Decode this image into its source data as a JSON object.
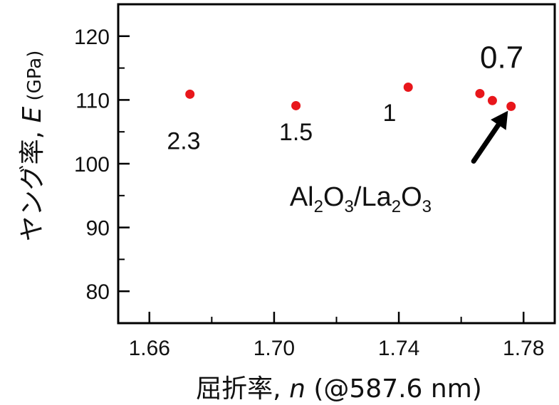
{
  "chart_data": {
    "type": "scatter",
    "xlabel": {
      "prefix": "屈折率, ",
      "var": "n",
      "suffix": " (@587.6 nm)"
    },
    "ylabel": {
      "prefix": "ヤング率, ",
      "var": "E",
      "unit": " (GPa)"
    },
    "xlim": [
      1.65,
      1.79
    ],
    "ylim": [
      75,
      125
    ],
    "xticks": [
      1.66,
      1.7,
      1.74,
      1.78
    ],
    "xtick_labels": [
      "1.66",
      "1.70",
      "1.74",
      "1.78"
    ],
    "yticks": [
      80,
      90,
      100,
      110,
      120
    ],
    "ytick_labels": [
      "80",
      "90",
      "100",
      "110",
      "120"
    ],
    "grid": false,
    "marker_color": "#e8161b",
    "points": [
      {
        "x": 1.673,
        "y": 110.9
      },
      {
        "x": 1.707,
        "y": 109.1
      },
      {
        "x": 1.743,
        "y": 112.0
      },
      {
        "x": 1.766,
        "y": 111.0
      },
      {
        "x": 1.77,
        "y": 109.9
      },
      {
        "x": 1.776,
        "y": 109.0
      }
    ],
    "annotations": [
      {
        "text": "2.3",
        "x": 1.671,
        "y": 102.3,
        "size": 34
      },
      {
        "text": "1.5",
        "x": 1.707,
        "y": 103.7,
        "size": 34
      },
      {
        "text": "1",
        "x": 1.737,
        "y": 106.7,
        "size": 34
      },
      {
        "text": "0.7",
        "x": 1.773,
        "y": 115.0,
        "size": 44
      }
    ],
    "composition_label": {
      "parts": [
        "Al",
        "2",
        "O",
        "3",
        "/La",
        "2",
        "O",
        "3"
      ]
    },
    "composition_pos": {
      "x": 1.705,
      "y": 93.4
    },
    "arrow": {
      "from": {
        "x": 1.764,
        "y": 100.4
      },
      "to": {
        "x": 1.775,
        "y": 108.3
      }
    }
  }
}
